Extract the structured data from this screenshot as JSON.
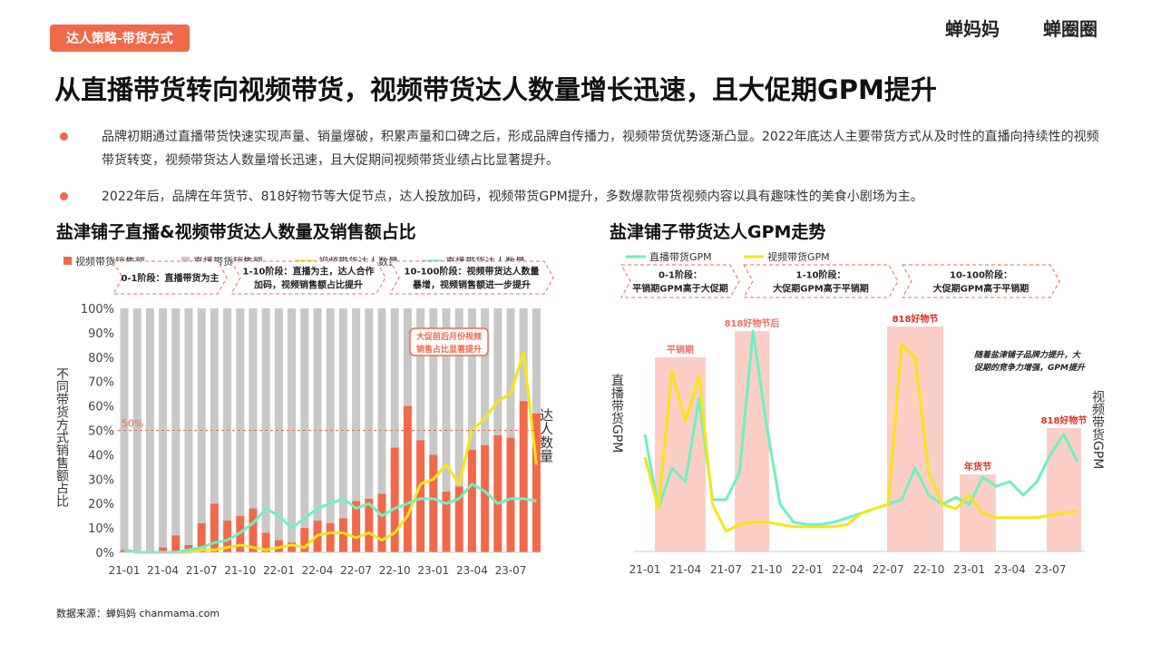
{
  "header": {
    "tag": "达人策略-带货方式",
    "logos": [
      "蝉妈妈",
      "蝉圈圈"
    ],
    "title": "从直播带货转向视频带货，视频带货达人数量增长迅速，且大促期GPM提升"
  },
  "bullets": [
    "品牌初期通过直播带货快速实现声量、销量爆破，积累声量和口碑之后，形成品牌自传播力，视频带货优势逐渐凸显。2022年底达人主要带货方式从及时性的直播向持续性的视频带货转变，视频带货达人数量增长迅速，且大促期间视频带货业绩占比显著提升。",
    "2022年后，品牌在年货节、818好物节等大促节点，达人投放加码，视频带货GPM提升，多数爆款带货视频内容以具有趣味性的美食小剧场为主。"
  ],
  "chart_data": [
    {
      "type": "bar",
      "title": "盐津铺子直播&视频带货达人数量及销售额占比",
      "ylabel": "不同带货方式销售额占比",
      "y2label": "达人数量",
      "categories": [
        "21-01",
        null,
        null,
        "21-04",
        null,
        null,
        "21-07",
        null,
        null,
        "21-10",
        null,
        null,
        "22-01",
        null,
        null,
        "22-04",
        null,
        null,
        "22-07",
        null,
        null,
        "22-10",
        null,
        null,
        "23-01",
        null,
        null,
        "23-04",
        null,
        null,
        "23-07",
        null,
        null
      ],
      "series": [
        {
          "name": "视频带货销售额",
          "type": "bar",
          "color": "#f0694a",
          "values": [
            1,
            0,
            0,
            2,
            7,
            3,
            12,
            20,
            13,
            15,
            18,
            8,
            5,
            4,
            10,
            13,
            12,
            14,
            21,
            22,
            24,
            43,
            60,
            46,
            40,
            25,
            27,
            42,
            44,
            48,
            47,
            62,
            57
          ]
        },
        {
          "name": "直播带货销售额",
          "type": "bar",
          "color": "#c8c8c8",
          "values": [
            99,
            100,
            100,
            98,
            93,
            97,
            88,
            80,
            87,
            85,
            82,
            92,
            95,
            96,
            90,
            87,
            88,
            86,
            79,
            78,
            76,
            57,
            40,
            54,
            60,
            75,
            73,
            58,
            56,
            52,
            53,
            38,
            43
          ]
        },
        {
          "name": "视频带货达人数量",
          "type": "line",
          "axis": "y2",
          "color": "#f5e616",
          "values": [
            1,
            0,
            0,
            0,
            0,
            0,
            1,
            1,
            2,
            3,
            2,
            1,
            2,
            3,
            2,
            7,
            8,
            8,
            6,
            8,
            5,
            8,
            15,
            28,
            30,
            36,
            28,
            50,
            55,
            62,
            65,
            82,
            36
          ]
        },
        {
          "name": "直播带货达人数量",
          "type": "line",
          "axis": "y2",
          "color": "#6ef0c0",
          "values": [
            1,
            0,
            0,
            0,
            0,
            1,
            2,
            4,
            5,
            8,
            12,
            18,
            15,
            10,
            14,
            18,
            20,
            22,
            18,
            20,
            15,
            18,
            20,
            22,
            22,
            20,
            22,
            28,
            25,
            20,
            22,
            22,
            21
          ]
        }
      ],
      "ylim": [
        0,
        100
      ],
      "yticks": [
        {
          "value": 0,
          "label": "0%"
        },
        {
          "value": 10,
          "label": "10%"
        },
        {
          "value": 20,
          "label": "20%"
        },
        {
          "value": 30,
          "label": "30%"
        },
        {
          "value": 40,
          "label": "40%"
        },
        {
          "value": 50,
          "label": "50%"
        },
        {
          "value": 60,
          "label": "60%"
        },
        {
          "value": 70,
          "label": "70%"
        },
        {
          "value": 80,
          "label": "80%"
        },
        {
          "value": 90,
          "label": "90%"
        },
        {
          "value": 100,
          "label": "100%"
        }
      ],
      "y2lim": [
        0,
        100
      ],
      "reference_line": {
        "value": 50,
        "label": "50%"
      },
      "stages": [
        [
          "0-1阶段：直播带货为主"
        ],
        [
          "1-10阶段：直播为主，达人合作",
          "加码，视频销售额占比提升"
        ],
        [
          "10-100阶段：视频带货达人数量",
          "暴增，视频销售额进一步提升"
        ]
      ],
      "annotation": [
        "大促前后月份视频",
        "销售占比显著提升"
      ]
    },
    {
      "type": "line",
      "title": "盐津铺子带货达人GPM走势",
      "ylabel": "直播带货GPM",
      "y2label": "视频带货GPM",
      "categories": [
        "21-01",
        null,
        null,
        "21-04",
        null,
        null,
        "21-07",
        null,
        null,
        "21-10",
        null,
        null,
        "22-01",
        null,
        null,
        "22-04",
        null,
        null,
        "22-07",
        null,
        null,
        "22-10",
        null,
        null,
        "23-01",
        null,
        null,
        "23-04",
        null,
        null,
        "23-07",
        null,
        null
      ],
      "series": [
        {
          "name": "直播带货GPM",
          "type": "line",
          "color": "#6ef0c0",
          "values": [
            52,
            19,
            37,
            31,
            68,
            23,
            23,
            35,
            98,
            56,
            21,
            13,
            12,
            12,
            13,
            15,
            17,
            19,
            21,
            23,
            37,
            25,
            21,
            24,
            21,
            33,
            29,
            31,
            25,
            31,
            43,
            52,
            40
          ]
        },
        {
          "name": "视频带货GPM",
          "type": "line",
          "axis": "y2",
          "color": "#f5e616",
          "values": [
            42,
            19,
            80,
            58,
            78,
            21,
            9,
            12,
            13,
            13,
            12,
            11,
            11,
            11,
            11,
            12,
            17,
            19,
            21,
            92,
            86,
            35,
            21,
            19,
            25,
            17,
            15,
            15,
            15,
            15,
            16,
            17,
            18
          ]
        }
      ],
      "ylim": [
        0,
        100
      ],
      "y2lim": [
        0,
        100
      ],
      "stages": [
        [
          "0-1阶段：",
          "平销期GPM高于大促期"
        ],
        [
          "1-10阶段：",
          "大促期GPM高于平销期"
        ],
        [
          "10-100阶段：",
          "大促期GPM高于平销期"
        ]
      ],
      "highlights": [
        "平销期",
        "818好物节后",
        "818好物节",
        "年货节",
        "818好物节"
      ],
      "annotation": [
        "随着盐津铺子品牌力提升，大",
        "促期的竞争力增强，GPM提升"
      ]
    }
  ],
  "source": "数据来源：蝉妈妈 chanmama.com"
}
